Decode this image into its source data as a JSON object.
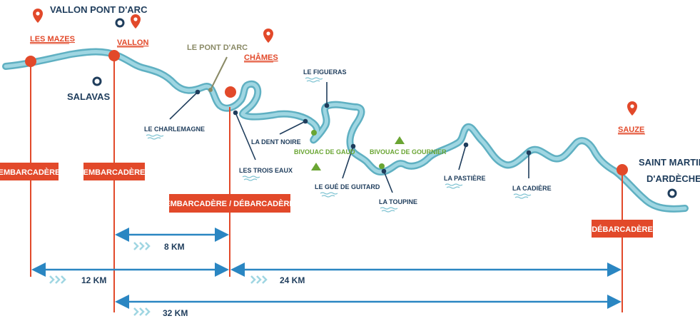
{
  "towns": {
    "vallon_pont_darc": "VALLON PONT D'ARC",
    "salavas": "SALAVAS",
    "saint_martin_line1": "SAINT MARTIN",
    "saint_martin_line2": "D'ARDÈCHE"
  },
  "launch_points": {
    "les_mazes": "LES MAZES",
    "vallon": "VALLON",
    "chames": "CHÂMES",
    "sauze": "SAUZE"
  },
  "landmarks": {
    "le_pont_darc": "LE PONT D'ARC"
  },
  "rapids": {
    "le_charlemagne": "LE CHARLEMAGNE",
    "les_trois_eaux": "LES TROIS EAUX",
    "la_dent_noire": "LA DENT NOIRE",
    "le_figueras": "LE FIGUERAS",
    "le_gue_de_guitard": "LE GUÉ DE GUITARD",
    "la_toupine": "LA TOUPINE",
    "la_pastiere": "LA PASTIÈRE",
    "la_cadiere": "LA CADIÈRE"
  },
  "campsites": {
    "bivouac_de_gaud": "BIVOUAC DE GAUD",
    "bivouac_de_gournier": "BIVOUAC DE GOURNIER"
  },
  "badges": {
    "embarcadere_1": "EMBARCADÈRE",
    "embarcadere_2": "EMBARCADÈRE",
    "embarcadere_debarcadere": "EMBARCADÈRE / DÉBARCADÈRE",
    "debarcadere": "DÉBARCADÈRE"
  },
  "distances": {
    "d8": "8 KM",
    "d12": "12 KM",
    "d24": "24 KM",
    "d32": "32 KM"
  },
  "colors": {
    "river": "#7fc3d2",
    "river_outline": "#5fb0c2",
    "accent_red": "#e2492a",
    "navy": "#1f3d5c",
    "arrow_blue": "#2a86c2",
    "camp_green": "#6aa533",
    "landmark_olive": "#8a8a66"
  }
}
